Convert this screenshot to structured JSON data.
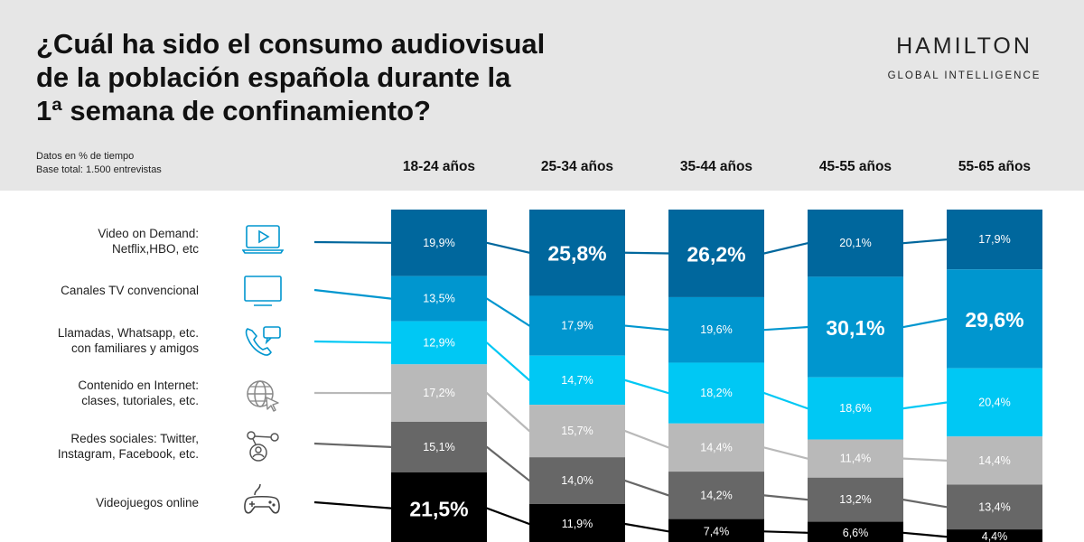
{
  "header": {
    "title": "¿Cuál ha sido el consumo audiovisual\nde la población española durante la\n1ª semana de confinamiento?",
    "brand": "HAMILTON",
    "brand_sub": "GLOBAL INTELLIGENCE",
    "meta_line1": "Datos en % de tiempo",
    "meta_line2": "Base total: 1.500 entrevistas"
  },
  "categories": [
    {
      "label": "Video on Demand:\nNetflix,HBO, etc",
      "icon": "laptop-play-icon",
      "color": "#00679d"
    },
    {
      "label": "Canales TV convencional",
      "icon": "tv-icon",
      "color": "#0096cf"
    },
    {
      "label": "Llamadas, Whatsapp, etc.\ncon familiares y amigos",
      "icon": "phone-chat-icon",
      "color": "#00c8f4"
    },
    {
      "label": "Contenido en Internet:\nclases, tutoriales, etc.",
      "icon": "globe-cursor-icon",
      "color": "#b9b9b9"
    },
    {
      "label": "Redes sociales: Twitter,\nInstagram, Facebook, etc.",
      "icon": "social-network-icon",
      "color": "#676767"
    },
    {
      "label": "Videojuegos online",
      "icon": "gamepad-icon",
      "color": "#000000"
    }
  ],
  "chart_data": {
    "type": "bar",
    "stacked": true,
    "unit": "% de tiempo",
    "categories": [
      "18-24 años",
      "25-34 años",
      "35-44 años",
      "45-55 años",
      "55-65 años"
    ],
    "series": [
      {
        "name": "Video on Demand: Netflix,HBO, etc",
        "values": [
          19.9,
          25.8,
          26.2,
          20.1,
          17.9
        ],
        "labels": [
          "19,9%",
          "25,8%",
          "26,2%",
          "20,1%",
          "17,9%"
        ]
      },
      {
        "name": "Canales TV convencional",
        "values": [
          13.5,
          17.9,
          19.6,
          30.1,
          29.6
        ],
        "labels": [
          "13,5%",
          "17,9%",
          "19,6%",
          "30,1%",
          "29,6%"
        ]
      },
      {
        "name": "Llamadas, Whatsapp, etc. con familiares y amigos",
        "values": [
          12.9,
          14.7,
          18.2,
          18.6,
          20.4
        ],
        "labels": [
          "12,9%",
          "14,7%",
          "18,2%",
          "18,6%",
          "20,4%"
        ]
      },
      {
        "name": "Contenido en Internet: clases, tutoriales, etc.",
        "values": [
          17.2,
          15.7,
          14.4,
          11.4,
          14.4
        ],
        "labels": [
          "17,2%",
          "15,7%",
          "14,4%",
          "11,4%",
          "14,4%"
        ]
      },
      {
        "name": "Redes sociales: Twitter, Instagram, Facebook, etc.",
        "values": [
          15.1,
          14.0,
          14.2,
          13.2,
          13.4
        ],
        "labels": [
          "15,1%",
          "14,0%",
          "14,2%",
          "13,2%",
          "13,4%"
        ]
      },
      {
        "name": "Videojuegos online",
        "values": [
          21.5,
          11.9,
          7.4,
          6.6,
          4.4
        ],
        "labels": [
          "21,5%",
          "11,9%",
          "7,4%",
          "6,6%",
          "4,4%"
        ]
      }
    ],
    "highlighted": [
      {
        "series": 5,
        "category": 0
      },
      {
        "series": 0,
        "category": 1
      },
      {
        "series": 0,
        "category": 2
      },
      {
        "series": 1,
        "category": 3
      },
      {
        "series": 1,
        "category": 4
      }
    ]
  }
}
